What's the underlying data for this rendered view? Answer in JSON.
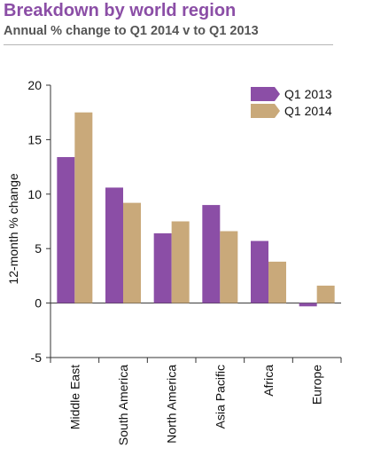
{
  "header": {
    "title": "Breakdown by world region",
    "subtitle": "Annual % change to Q1 2014 v to Q1 2013"
  },
  "chart_data": {
    "type": "bar",
    "title": "Breakdown by world region",
    "subtitle": "Annual % change to Q1 2014 v to Q1 2013",
    "xlabel": "",
    "ylabel": "12-month % change",
    "ylim": [
      -5,
      20
    ],
    "yticks": [
      -5,
      0,
      5,
      10,
      15,
      20
    ],
    "grid": false,
    "legend_position": "top-right",
    "categories": [
      "Middle East",
      "South America",
      "North America",
      "Asia Pacific",
      "Africa",
      "Europe"
    ],
    "series": [
      {
        "name": "Q1 2013",
        "color": "#8b4ea6",
        "values": [
          13.4,
          10.6,
          6.4,
          9.0,
          5.7,
          -0.3
        ]
      },
      {
        "name": "Q1 2014",
        "color": "#c9a97a",
        "values": [
          17.5,
          9.2,
          7.5,
          6.6,
          3.8,
          1.6
        ]
      }
    ]
  }
}
